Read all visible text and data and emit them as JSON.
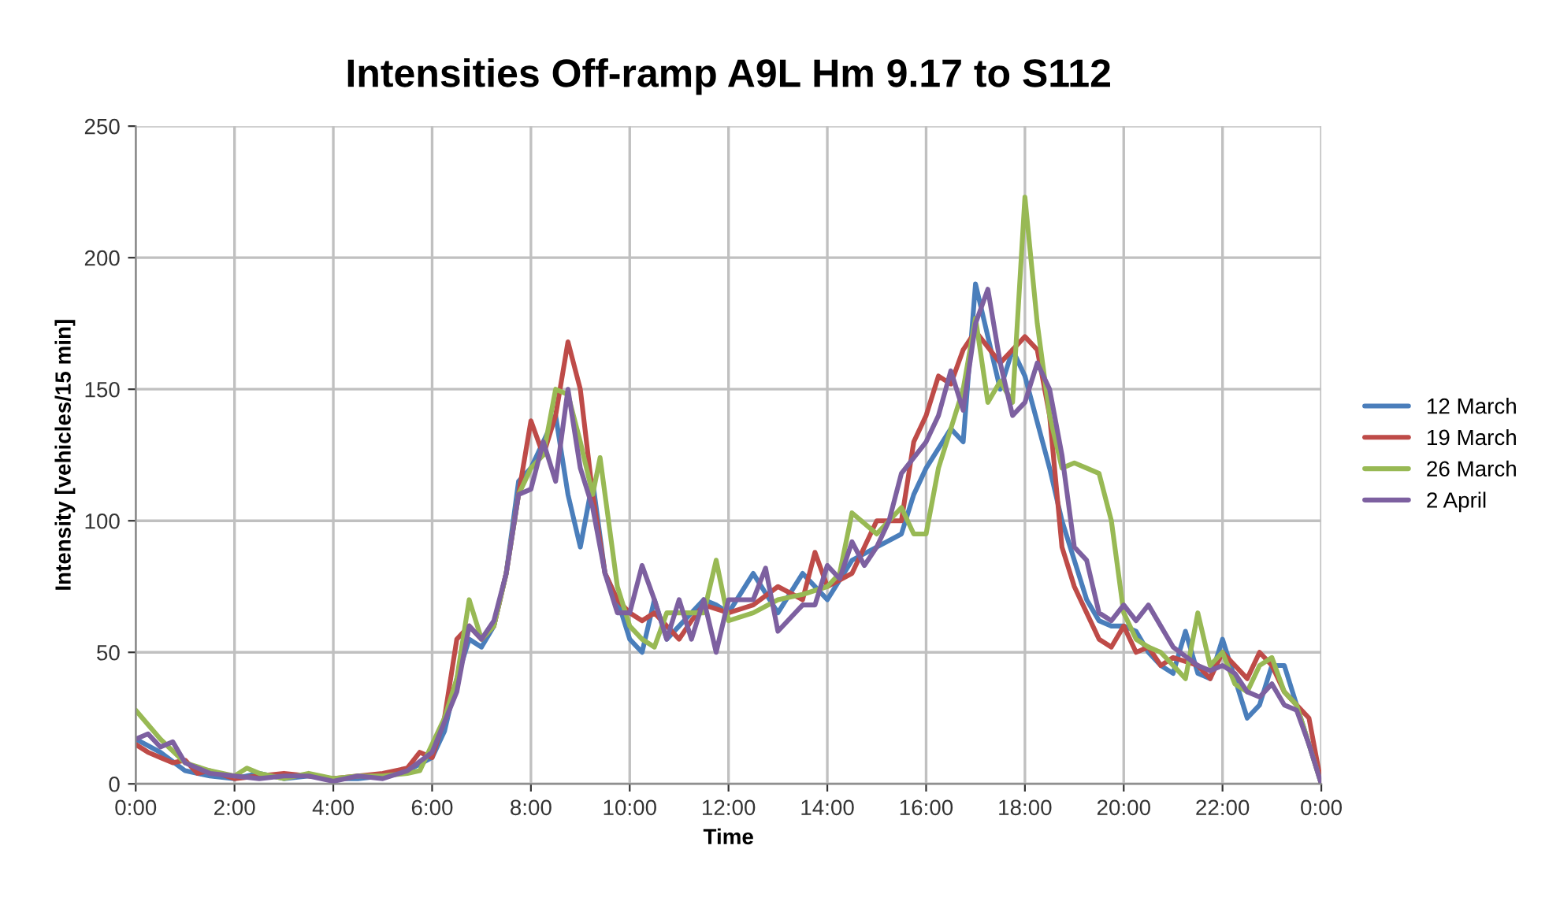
{
  "chart_data": {
    "type": "line",
    "title": "Intensities Off-ramp A9L Hm 9.17 to S112",
    "xlabel": "Time",
    "ylabel": "Intensity [vehicles/15 min]",
    "xlim": [
      0,
      24
    ],
    "ylim": [
      0,
      250
    ],
    "xticks": [
      {
        "value": 0,
        "label": "0:00"
      },
      {
        "value": 2,
        "label": "2:00"
      },
      {
        "value": 4,
        "label": "4:00"
      },
      {
        "value": 6,
        "label": "6:00"
      },
      {
        "value": 8,
        "label": "8:00"
      },
      {
        "value": 10,
        "label": "10:00"
      },
      {
        "value": 12,
        "label": "12:00"
      },
      {
        "value": 14,
        "label": "14:00"
      },
      {
        "value": 16,
        "label": "16:00"
      },
      {
        "value": 18,
        "label": "18:00"
      },
      {
        "value": 20,
        "label": "20:00"
      },
      {
        "value": 22,
        "label": "22:00"
      },
      {
        "value": 24,
        "label": "0:00"
      }
    ],
    "yticks": [
      0,
      50,
      100,
      150,
      200,
      250
    ],
    "grid": true,
    "legend": "right",
    "marker": "none",
    "line_style": "solid",
    "series": [
      {
        "name": "12 March",
        "color": "#4a7ebb",
        "x": [
          0,
          0.5,
          1,
          1.5,
          2,
          2.5,
          3,
          3.5,
          4,
          4.5,
          5,
          5.5,
          6,
          6.25,
          6.5,
          6.75,
          7,
          7.25,
          7.5,
          7.75,
          8,
          8.25,
          8.5,
          8.75,
          9,
          9.25,
          9.5,
          9.75,
          10,
          10.25,
          10.5,
          10.75,
          11,
          11.25,
          11.5,
          11.75,
          12,
          12.5,
          13,
          13.5,
          14,
          14.5,
          15,
          15.5,
          15.75,
          16,
          16.5,
          16.75,
          17,
          17.25,
          17.5,
          17.75,
          18,
          18.5,
          18.75,
          19,
          19.25,
          19.5,
          19.75,
          20,
          20.25,
          20.5,
          20.75,
          21,
          21.25,
          21.5,
          21.75,
          22,
          22.25,
          22.5,
          22.75,
          23,
          23.25,
          23.5,
          23.75,
          24
        ],
        "values": [
          17,
          12,
          5,
          3,
          2,
          4,
          2,
          3,
          2,
          2,
          3,
          5,
          10,
          20,
          40,
          55,
          52,
          60,
          80,
          115,
          120,
          130,
          140,
          110,
          90,
          115,
          80,
          70,
          55,
          50,
          70,
          55,
          60,
          65,
          70,
          68,
          65,
          80,
          65,
          80,
          70,
          85,
          90,
          95,
          110,
          120,
          135,
          130,
          190,
          170,
          150,
          165,
          155,
          120,
          100,
          85,
          70,
          62,
          60,
          60,
          58,
          50,
          45,
          42,
          58,
          42,
          40,
          55,
          40,
          25,
          30,
          45,
          45,
          30,
          15,
          0
        ]
      },
      {
        "name": "19 March",
        "color": "#be4b48",
        "x": [
          0,
          0.25,
          0.5,
          0.75,
          1,
          1.25,
          1.5,
          2,
          2.5,
          3,
          3.5,
          4,
          4.5,
          5,
          5.5,
          5.75,
          6,
          6.25,
          6.5,
          6.75,
          7,
          7.25,
          7.5,
          7.75,
          8,
          8.25,
          8.5,
          8.75,
          9,
          9.25,
          9.5,
          9.75,
          10,
          10.25,
          10.5,
          10.75,
          11,
          11.25,
          11.5,
          12,
          12.5,
          13,
          13.5,
          13.75,
          14,
          14.5,
          15,
          15.5,
          15.75,
          16,
          16.25,
          16.5,
          16.75,
          17,
          17.5,
          17.75,
          18,
          18.25,
          18.5,
          18.75,
          19,
          19.25,
          19.5,
          19.75,
          20,
          20.25,
          20.5,
          20.75,
          21,
          21.5,
          21.75,
          22,
          22.5,
          22.75,
          23,
          23.25,
          23.5,
          23.75,
          24
        ],
        "values": [
          15,
          12,
          10,
          8,
          9,
          4,
          5,
          2,
          3,
          4,
          3,
          2,
          3,
          4,
          6,
          12,
          10,
          25,
          55,
          60,
          55,
          60,
          80,
          110,
          138,
          125,
          140,
          168,
          150,
          110,
          80,
          70,
          65,
          62,
          65,
          60,
          55,
          62,
          68,
          65,
          68,
          75,
          70,
          88,
          75,
          80,
          100,
          100,
          130,
          140,
          155,
          152,
          165,
          172,
          160,
          165,
          170,
          165,
          140,
          90,
          75,
          65,
          55,
          52,
          60,
          50,
          52,
          45,
          48,
          45,
          40,
          50,
          40,
          50,
          45,
          35,
          30,
          25,
          0
        ]
      },
      {
        "name": "26 March",
        "color": "#98b954",
        "x": [
          0,
          0.5,
          1,
          1.5,
          2,
          2.25,
          2.5,
          3,
          3.5,
          4,
          4.5,
          5,
          5.5,
          5.75,
          6,
          6.25,
          6.5,
          6.75,
          7,
          7.25,
          7.5,
          7.75,
          8,
          8.25,
          8.5,
          8.75,
          9,
          9.25,
          9.4,
          9.75,
          10,
          10.25,
          10.5,
          10.75,
          11,
          11.5,
          11.75,
          12,
          12.5,
          13,
          13.5,
          14,
          14.25,
          14.5,
          15,
          15.25,
          15.5,
          15.75,
          16,
          16.25,
          16.5,
          16.75,
          17,
          17.25,
          17.5,
          17.75,
          18,
          18.25,
          18.5,
          18.75,
          19,
          19.25,
          19.5,
          19.75,
          20,
          20.25,
          20.5,
          20.75,
          21,
          21.25,
          21.5,
          21.75,
          22,
          22.25,
          22.5,
          22.75,
          23,
          23.25,
          23.5,
          23.75,
          24
        ],
        "values": [
          28,
          17,
          8,
          5,
          3,
          6,
          4,
          2,
          4,
          2,
          3,
          3,
          4,
          5,
          15,
          25,
          40,
          70,
          55,
          60,
          80,
          110,
          120,
          125,
          150,
          148,
          130,
          110,
          124,
          75,
          60,
          55,
          52,
          65,
          65,
          65,
          85,
          62,
          65,
          70,
          72,
          75,
          80,
          103,
          95,
          100,
          105,
          95,
          95,
          120,
          135,
          150,
          177,
          145,
          153,
          145,
          223,
          175,
          140,
          120,
          122,
          120,
          118,
          100,
          65,
          55,
          52,
          50,
          45,
          40,
          65,
          45,
          50,
          38,
          35,
          45,
          48,
          35,
          30,
          15,
          0
        ]
      },
      {
        "name": "2 April",
        "color": "#7d60a0",
        "x": [
          0,
          0.25,
          0.5,
          0.75,
          1,
          1.5,
          2,
          2.5,
          3,
          3.5,
          4,
          4.5,
          5,
          5.5,
          6,
          6.5,
          6.75,
          7,
          7.25,
          7.5,
          7.75,
          8,
          8.25,
          8.5,
          8.75,
          9,
          9.25,
          9.5,
          9.75,
          10,
          10.25,
          10.5,
          10.75,
          11,
          11.25,
          11.5,
          11.75,
          12,
          12.5,
          12.75,
          13,
          13.5,
          13.75,
          14,
          14.25,
          14.5,
          14.75,
          15,
          15.25,
          15.5,
          16,
          16.25,
          16.5,
          16.75,
          17,
          17.25,
          17.5,
          17.75,
          18,
          18.25,
          18.5,
          18.75,
          19,
          19.25,
          19.5,
          19.75,
          20,
          20.25,
          20.5,
          20.75,
          21,
          21.5,
          21.75,
          22,
          22.25,
          22.5,
          22.75,
          23,
          23.25,
          23.5,
          23.75,
          24
        ],
        "values": [
          17,
          19,
          14,
          16,
          8,
          4,
          3,
          2,
          3,
          3,
          1,
          3,
          2,
          5,
          12,
          35,
          60,
          55,
          62,
          80,
          110,
          112,
          130,
          115,
          150,
          120,
          105,
          80,
          65,
          65,
          83,
          70,
          55,
          70,
          55,
          70,
          50,
          70,
          70,
          82,
          58,
          68,
          68,
          83,
          78,
          92,
          83,
          90,
          100,
          118,
          130,
          140,
          157,
          142,
          175,
          188,
          160,
          140,
          145,
          160,
          150,
          125,
          90,
          85,
          65,
          62,
          68,
          62,
          68,
          60,
          52,
          45,
          43,
          45,
          42,
          35,
          33,
          38,
          30,
          28,
          15,
          0
        ]
      }
    ]
  }
}
